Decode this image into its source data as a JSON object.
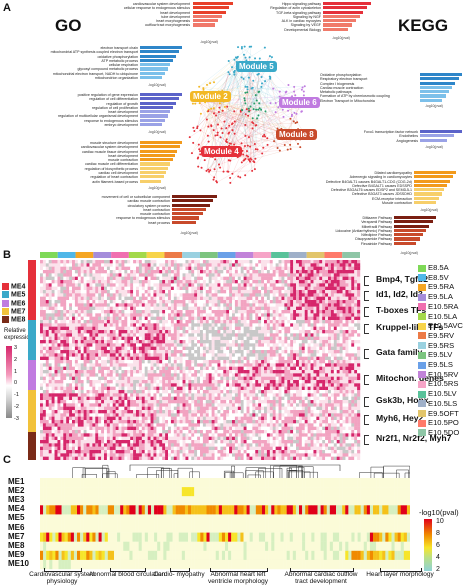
{
  "panels": {
    "a": "A",
    "b": "B",
    "c": "C"
  },
  "go_title": "GO",
  "kegg_title": "KEGG",
  "colors": {
    "module1": "#e8402a",
    "module2": "#f2b825",
    "module3": "#7b5fc9",
    "module4": "#e5303a",
    "module5": "#3aa9c9",
    "module6": "#c07be0",
    "module7": "#f2c23a",
    "module8": "#c84a2b",
    "lowheat": "#ffffff",
    "highheat": "#d6266b"
  },
  "modules": [
    "Module 5",
    "Module 2",
    "Module 6",
    "Module 8",
    "Module 4"
  ],
  "go_top": [
    "cardiovascular system development",
    "cellular response to endogenous stimulus",
    "heart development",
    "tube development",
    "heart morphogenesis",
    "outflow tract morphogenesis"
  ],
  "go_blue": [
    "electron transport chain",
    "mitochondrial ATP synthesis coupled electron transport",
    "oxidative phosphorylation",
    "ATP metabolic process",
    "cellular respiration",
    "glycosyl compound metabolic process",
    "mitochondrial electron transport, NADH to ubiquinone",
    "mitochondrion organization"
  ],
  "go_purple": [
    "positive regulation of gene expression",
    "regulation of cell differentiation",
    "regulation of growth",
    "regulation of cell proliferation",
    "heart development",
    "regulation of multicellular organismal development",
    "response to endogenous stimulus",
    "embryo development"
  ],
  "go_orange": [
    "muscle structure development",
    "cardiovascular system development",
    "cardiac muscle tissue development",
    "heart development",
    "muscle contraction",
    "cardiac muscle cell differentiation",
    "regulation of biosynthetic process",
    "cardiac cell development",
    "regulation of heart contraction",
    "actin filament-based process"
  ],
  "go_red": [
    "movement of cell or subcellular component",
    "cardiac muscle contraction",
    "circulatory system process",
    "heart contraction",
    "muscle contraction",
    "response to endogenous stimulus",
    "heart process"
  ],
  "kegg_top": [
    "Hippo signaling pathway",
    "Regulation of actin cytoskeleton",
    "TGF-beta signaling pathway",
    "Signaling by NGF",
    "ALK in cardiac myocytes",
    "Signaling by VEGF",
    "Developmental Biology"
  ],
  "kegg_blue": [
    "Oxidative phosphorylation",
    "Respiratory electron transport",
    "Complex I biogenesis",
    "Cardiac muscle contraction",
    "Metabolic pathways",
    "Formation of ATP by chemiosmotic coupling",
    "Electron Transport in Mitochondria"
  ],
  "kegg_purple": [
    "Foxo1 transcription factor network",
    "Endothelins",
    "Angiogenesis"
  ],
  "kegg_orange": [
    "Dilated cardiomyopathy",
    "Adrenergic signaling in cardiomyocytes",
    "Defective B4GALT1 causes B4GALT1-CDG (CDG-2d)",
    "Defective B4GALT1 causes EDSSPD",
    "Defective B3GALT6 causes EDSP2 and SEMDJL1",
    "Defective B3GAT3 causes JDSSDHD",
    "ECM-receptor interaction",
    "Muscle contraction"
  ],
  "kegg_red": [
    "Diltiazem Pathway",
    "Verapamil Pathway",
    "Mibefradil Pathway",
    "Lidocaine (Antiarrhythmic) Pathway",
    "Nifedipine Pathway",
    "Disopyramide Pathway",
    "Flecainide Pathway"
  ],
  "axis_caption": "-log10(pval)",
  "b_me_keys": [
    {
      "label": "ME4",
      "color": "#e5303a"
    },
    {
      "label": "ME5",
      "color": "#3aa9c9"
    },
    {
      "label": "ME6",
      "color": "#c07be0"
    },
    {
      "label": "ME7",
      "color": "#f2c23a"
    },
    {
      "label": "ME8",
      "color": "#7a2b18"
    }
  ],
  "relative_expression_title": "Relative expression",
  "rel_ticks": [
    "3",
    "2",
    "1",
    "0",
    "-1",
    "-2",
    "-3"
  ],
  "gene_labels": [
    "Bmp4, Tgfb2",
    "Id1, Id2, Id3",
    "T-boxes TFs",
    "Kruppel-like TFs",
    "Gata family",
    "Mitochon. genes",
    "Gsk3b, Hopx",
    "Myh6, Hey2",
    "Nr2f1, Nr2f2, Myh7"
  ],
  "stages": [
    {
      "label": "E8.5A",
      "color": "#7ed957"
    },
    {
      "label": "E8.5V",
      "color": "#4fb7e8"
    },
    {
      "label": "E9.5RA",
      "color": "#f5a623"
    },
    {
      "label": "E9.5LA",
      "color": "#a58ddb"
    },
    {
      "label": "E10.5RA",
      "color": "#f06fb0"
    },
    {
      "label": "E10.5LA",
      "color": "#a3d94b"
    },
    {
      "label": "E10.5AVC",
      "color": "#f7d44a"
    },
    {
      "label": "E9.5RV",
      "color": "#ec7a47"
    },
    {
      "label": "E9.5RS",
      "color": "#9ad1e0"
    },
    {
      "label": "E9.5LV",
      "color": "#7cc47f"
    },
    {
      "label": "E9.5LS",
      "color": "#6aa0e8"
    },
    {
      "label": "E10.5RV",
      "color": "#c283d9"
    },
    {
      "label": "E10.5RS",
      "color": "#f6a4c7"
    },
    {
      "label": "E10.5LV",
      "color": "#59c29a"
    },
    {
      "label": "E10.5LS",
      "color": "#9fb0c9"
    },
    {
      "label": "E9.5OFT",
      "color": "#e2c56b"
    },
    {
      "label": "E10.5PO",
      "color": "#ff7a6a"
    },
    {
      "label": "E10.5DO",
      "color": "#8ec6a6"
    }
  ],
  "c_rows": [
    "ME1",
    "ME2",
    "ME3",
    "ME4",
    "ME5",
    "ME6",
    "ME7",
    "ME8",
    "ME9",
    "ME10"
  ],
  "c_legend_title": "-log10(pval)",
  "c_legend_ticks": [
    "10",
    "8",
    "6",
    "4",
    "2"
  ],
  "c_categories": [
    {
      "label": "Cardiovascular\nsystem physiology"
    },
    {
      "label": "Abnormal blood\ncirculation"
    },
    {
      "label": "Cardio-\nmyopathy"
    },
    {
      "label": "Abnormal heart left\nventricle morphology"
    },
    {
      "label": "Abnormal cardiac outflow\ntract development"
    },
    {
      "label": "Heart layer\nmorphology"
    }
  ]
}
